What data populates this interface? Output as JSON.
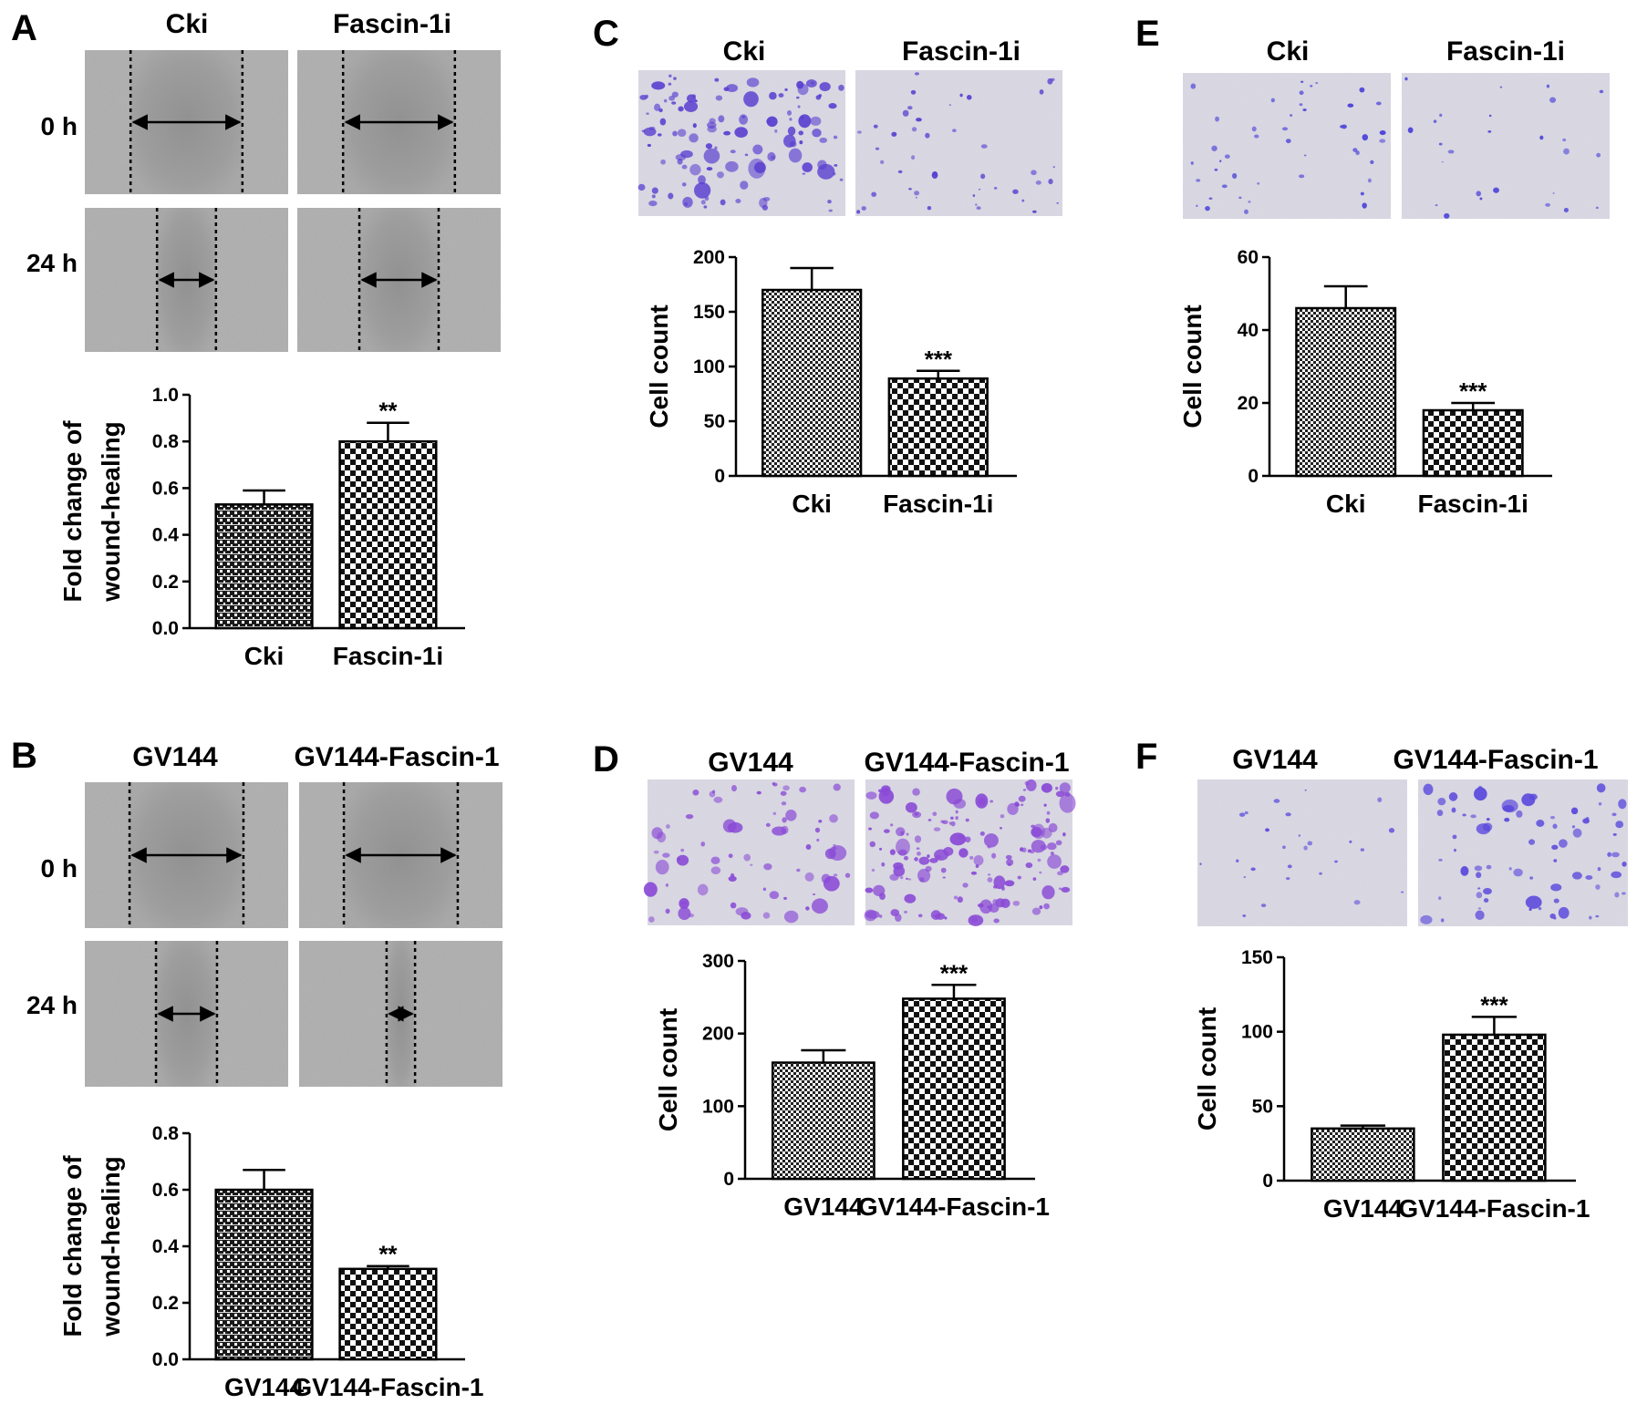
{
  "panels": [
    {
      "letter": "A",
      "kind": "wound",
      "conditions": [
        "Cki",
        "Fascin-1i"
      ],
      "timepoints": [
        "0 h",
        "24 h"
      ],
      "gap_fraction": [
        [
          0.55,
          0.55
        ],
        [
          0.29,
          0.39
        ]
      ]
    },
    {
      "letter": "B",
      "kind": "wound",
      "conditions": [
        "GV144",
        "GV144-Fascin-1"
      ],
      "timepoints": [
        "0 h",
        "24 h"
      ],
      "gap_fraction": [
        [
          0.56,
          0.56
        ],
        [
          0.3,
          0.14
        ]
      ]
    },
    {
      "letter": "C",
      "kind": "transwell",
      "conditions": [
        "Cki",
        "Fascin-1i"
      ],
      "density": [
        "high",
        "low"
      ],
      "stain_color": "#5a3fd0"
    },
    {
      "letter": "D",
      "kind": "transwell",
      "conditions": [
        "GV144",
        "GV144-Fascin-1"
      ],
      "density": [
        "medium",
        "very-high"
      ],
      "stain_color": "#8a4ad6"
    },
    {
      "letter": "E",
      "kind": "transwell",
      "conditions": [
        "Cki",
        "Fascin-1i"
      ],
      "density": [
        "low",
        "sparse"
      ],
      "stain_color": "#4a40d8"
    },
    {
      "letter": "F",
      "kind": "transwell",
      "conditions": [
        "GV144",
        "GV144-Fascin-1"
      ],
      "density": [
        "sparse",
        "medium"
      ],
      "stain_color": "#5a48dc"
    }
  ],
  "chart_data": [
    {
      "panel": "A",
      "type": "bar",
      "categories": [
        "Cki",
        "Fascin-1i"
      ],
      "values": [
        0.53,
        0.8
      ],
      "errors": [
        0.06,
        0.08
      ],
      "significance": [
        "",
        "**"
      ],
      "ylabel": [
        "Fold change of",
        "wound-healing"
      ],
      "ylim": [
        0,
        1.0
      ],
      "yticks": [
        "0.0",
        "0.2",
        "0.4",
        "0.6",
        "0.8",
        "1.0"
      ],
      "bar_patterns": [
        "dots",
        "checker"
      ]
    },
    {
      "panel": "B",
      "type": "bar",
      "categories": [
        "GV144",
        "GV144-Fascin-1"
      ],
      "values": [
        0.6,
        0.32
      ],
      "errors": [
        0.07,
        0.01
      ],
      "significance": [
        "",
        "**"
      ],
      "ylabel": [
        "Fold change of",
        "wound-healing"
      ],
      "ylim": [
        0,
        0.8
      ],
      "yticks": [
        "0.0",
        "0.2",
        "0.4",
        "0.6",
        "0.8"
      ],
      "bar_patterns": [
        "dots",
        "checker"
      ]
    },
    {
      "panel": "C",
      "type": "bar",
      "categories": [
        "Cki",
        "Fascin-1i"
      ],
      "values": [
        170,
        89
      ],
      "errors": [
        20,
        7
      ],
      "significance": [
        "",
        "***"
      ],
      "ylabel": [
        "Cell count"
      ],
      "ylim": [
        0,
        200
      ],
      "yticks": [
        "0",
        "50",
        "100",
        "150",
        "200"
      ],
      "bar_patterns": [
        "checker-small",
        "checker"
      ]
    },
    {
      "panel": "D",
      "type": "bar",
      "categories": [
        "GV144",
        "GV144-Fascin-1"
      ],
      "values": [
        160,
        248
      ],
      "errors": [
        17,
        19
      ],
      "significance": [
        "",
        "***"
      ],
      "ylabel": [
        "Cell count"
      ],
      "ylim": [
        0,
        300
      ],
      "yticks": [
        "0",
        "100",
        "200",
        "300"
      ],
      "bar_patterns": [
        "checker-small",
        "checker"
      ]
    },
    {
      "panel": "E",
      "type": "bar",
      "categories": [
        "Cki",
        "Fascin-1i"
      ],
      "values": [
        46,
        18
      ],
      "errors": [
        6,
        2
      ],
      "significance": [
        "",
        "***"
      ],
      "ylabel": [
        "Cell count"
      ],
      "ylim": [
        0,
        60
      ],
      "yticks": [
        "0",
        "20",
        "40",
        "60"
      ],
      "bar_patterns": [
        "checker-small",
        "checker"
      ]
    },
    {
      "panel": "F",
      "type": "bar",
      "categories": [
        "GV144",
        "GV144-Fascin-1"
      ],
      "values": [
        35,
        98
      ],
      "errors": [
        2,
        12
      ],
      "significance": [
        "",
        "***"
      ],
      "ylabel": [
        "Cell count"
      ],
      "ylim": [
        0,
        150
      ],
      "yticks": [
        "0",
        "50",
        "100",
        "150"
      ],
      "bar_patterns": [
        "checker-small",
        "checker"
      ]
    }
  ]
}
